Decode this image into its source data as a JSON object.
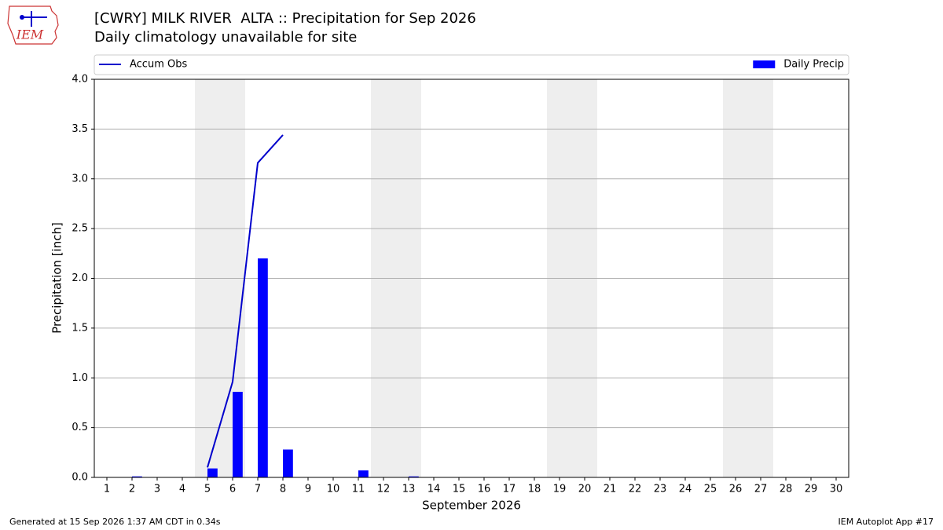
{
  "chart_data": {
    "type": "bar",
    "title": "[CWRY] MILK RIVER  ALTA :: Precipitation for Sep 2026",
    "subtitle": "Daily climatology unavailable for site",
    "logo_text": "IEM",
    "xlabel": "September 2026",
    "ylabel": "Precipitation [inch]",
    "footer_left": "Generated at 15 Sep 2026 1:37 AM CDT in 0.34s",
    "footer_right": "IEM Autoplot App #17",
    "x": [
      1,
      2,
      3,
      4,
      5,
      6,
      7,
      8,
      9,
      10,
      11,
      12,
      13,
      14,
      15,
      16,
      17,
      18,
      19,
      20,
      21,
      22,
      23,
      24,
      25,
      26,
      27,
      28,
      29,
      30
    ],
    "xlim": [
      0.5,
      30.5
    ],
    "xticks": [
      1,
      2,
      3,
      4,
      5,
      6,
      7,
      8,
      9,
      10,
      11,
      12,
      13,
      14,
      15,
      16,
      17,
      18,
      19,
      20,
      21,
      22,
      23,
      24,
      25,
      26,
      27,
      28,
      29,
      30
    ],
    "ylim": [
      0,
      4
    ],
    "yticks": [
      {
        "value": 0,
        "label": "0.0"
      },
      {
        "value": 0.5,
        "label": "0.5"
      },
      {
        "value": 1,
        "label": "1.0"
      },
      {
        "value": 1.5,
        "label": "1.5"
      },
      {
        "value": 2,
        "label": "2.0"
      },
      {
        "value": 2.5,
        "label": "2.5"
      },
      {
        "value": 3,
        "label": "3.0"
      },
      {
        "value": 3.5,
        "label": "3.5"
      },
      {
        "value": 4,
        "label": "4.0"
      }
    ],
    "grid": true,
    "legend": "top",
    "shaded_ranges": [
      [
        4.5,
        6.5
      ],
      [
        11.5,
        13.5
      ],
      [
        18.5,
        20.5
      ],
      [
        25.5,
        27.5
      ]
    ],
    "shade_color": "#eeeeee",
    "series": [
      {
        "name": "Accum Obs",
        "type": "line",
        "color": "#0000cc",
        "values": [
          null,
          null,
          null,
          null,
          0.1,
          0.96,
          3.16,
          3.44,
          null,
          null,
          null,
          null,
          null,
          null,
          null,
          null,
          null,
          null,
          null,
          null,
          null,
          null,
          null,
          null,
          null,
          null,
          null,
          null,
          null,
          null
        ]
      },
      {
        "name": "Daily Precip",
        "type": "bar",
        "color": "#0000ff",
        "values": [
          0,
          0.01,
          0,
          0,
          0.09,
          0.86,
          2.2,
          0.28,
          0,
          0,
          0.07,
          0,
          0.01,
          0,
          0,
          0,
          0,
          0,
          0,
          0,
          0,
          0,
          0,
          0,
          0,
          0,
          0,
          0,
          0,
          0
        ]
      }
    ]
  }
}
